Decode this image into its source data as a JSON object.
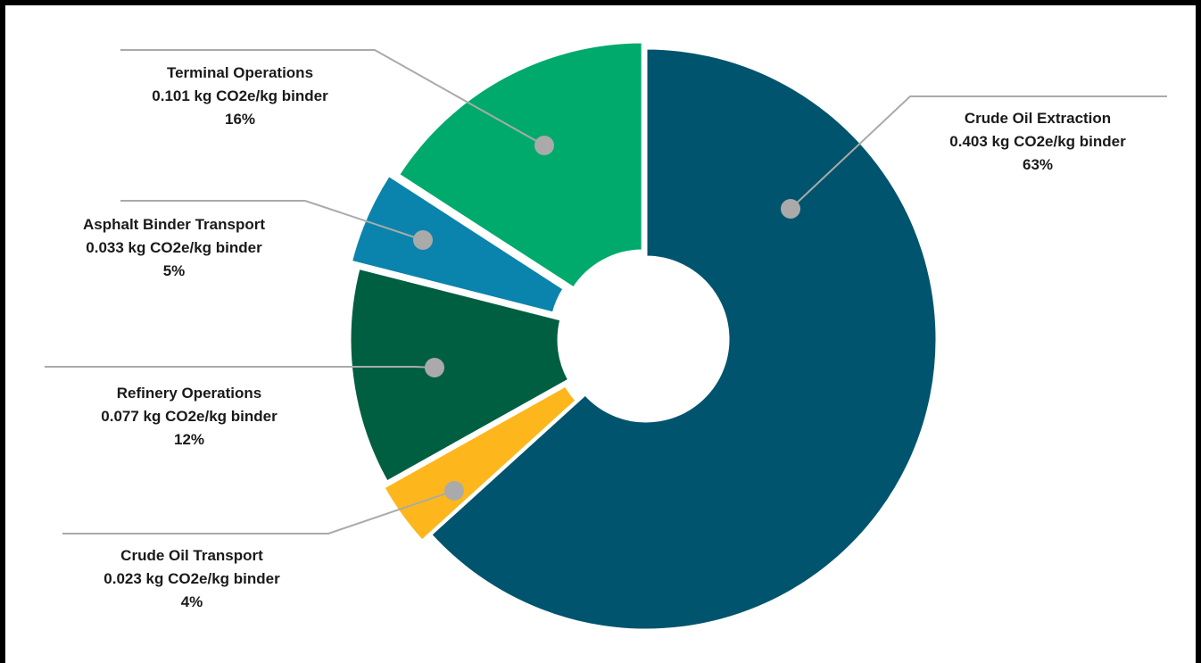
{
  "chart_data": {
    "type": "pie",
    "style": "donut, exploded slices, leader-line callouts",
    "unit": "kg CO2e/kg binder",
    "slices": [
      {
        "label": "Crude Oil Extraction",
        "value_text": "0.403 kg CO2e/kg binder",
        "percent_text": "63%",
        "value": 0.403,
        "percent": 63,
        "color": "#00546E"
      },
      {
        "label": "Crude Oil Transport",
        "value_text": "0.023 kg CO2e/kg binder",
        "percent_text": "4%",
        "value": 0.023,
        "percent": 4,
        "color": "#FDB71C"
      },
      {
        "label": "Refinery Operations",
        "value_text": "0.077 kg CO2e/kg binder",
        "percent_text": "12%",
        "value": 0.077,
        "percent": 12,
        "color": "#005F40"
      },
      {
        "label": "Asphalt Binder Transport",
        "value_text": "0.033 kg CO2e/kg binder",
        "percent_text": "5%",
        "value": 0.033,
        "percent": 5,
        "color": "#0A84AD"
      },
      {
        "label": "Terminal Operations",
        "value_text": "0.101 kg CO2e/kg binder",
        "percent_text": "16%",
        "value": 0.101,
        "percent": 16,
        "color": "#00AA6C"
      }
    ],
    "leader_color": "#AAAAAA"
  }
}
